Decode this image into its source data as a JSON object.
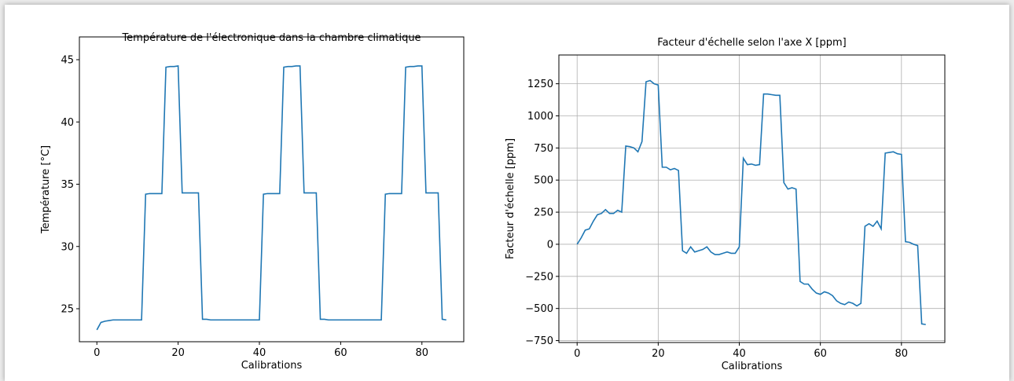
{
  "chart_data": [
    {
      "type": "line",
      "title": "Température de l'électronique dans la chambre climatique",
      "xlabel": "Calibrations",
      "ylabel": "Température [°C]",
      "color": "#1f77b4",
      "grid": false,
      "x": [
        0,
        1,
        2,
        3,
        4,
        5,
        6,
        7,
        8,
        9,
        10,
        11,
        12,
        13,
        14,
        15,
        16,
        17,
        18,
        19,
        20,
        21,
        22,
        23,
        24,
        25,
        26,
        27,
        28,
        29,
        30,
        31,
        32,
        33,
        34,
        35,
        36,
        37,
        38,
        39,
        40,
        41,
        42,
        43,
        44,
        45,
        46,
        47,
        48,
        49,
        50,
        51,
        52,
        53,
        54,
        55,
        56,
        57,
        58,
        59,
        60,
        61,
        62,
        63,
        64,
        65,
        66,
        67,
        68,
        69,
        70,
        71,
        72,
        73,
        74,
        75,
        76,
        77,
        78,
        79,
        80,
        81,
        82,
        83,
        84,
        85,
        86
      ],
      "values": [
        23.3,
        23.9,
        24.0,
        24.05,
        24.1,
        24.1,
        24.1,
        24.1,
        24.1,
        24.1,
        24.1,
        24.1,
        34.2,
        34.25,
        34.25,
        34.25,
        34.25,
        44.4,
        44.45,
        44.45,
        44.5,
        34.3,
        34.3,
        34.3,
        34.3,
        34.3,
        24.15,
        24.15,
        24.1,
        24.1,
        24.1,
        24.1,
        24.1,
        24.1,
        24.1,
        24.1,
        24.1,
        24.1,
        24.1,
        24.1,
        24.1,
        34.2,
        34.25,
        34.25,
        34.25,
        34.25,
        44.4,
        44.45,
        44.45,
        44.5,
        44.5,
        34.3,
        34.3,
        34.3,
        34.3,
        24.15,
        24.15,
        24.1,
        24.1,
        24.1,
        24.1,
        24.1,
        24.1,
        24.1,
        24.1,
        24.1,
        24.1,
        24.1,
        24.1,
        24.1,
        24.1,
        34.2,
        34.25,
        34.25,
        34.25,
        34.25,
        44.4,
        44.45,
        44.45,
        44.5,
        44.5,
        34.3,
        34.3,
        34.3,
        34.3,
        24.15,
        24.1
      ],
      "xlim": [
        -4.3,
        90.3
      ],
      "ylim": [
        22.35,
        46.83
      ],
      "xticks": [
        0,
        20,
        40,
        60,
        80
      ],
      "yticks": [
        25,
        30,
        35,
        40,
        45
      ]
    },
    {
      "type": "line",
      "title": "Facteur d'échelle selon l'axe X [ppm]",
      "xlabel": "Calibrations",
      "ylabel": "Facteur d'échelle [ppm]",
      "color": "#1f77b4",
      "grid": true,
      "x": [
        0,
        1,
        2,
        3,
        4,
        5,
        6,
        7,
        8,
        9,
        10,
        11,
        12,
        13,
        14,
        15,
        16,
        17,
        18,
        19,
        20,
        21,
        22,
        23,
        24,
        25,
        26,
        27,
        28,
        29,
        30,
        31,
        32,
        33,
        34,
        35,
        36,
        37,
        38,
        39,
        40,
        41,
        42,
        43,
        44,
        45,
        46,
        47,
        48,
        49,
        50,
        51,
        52,
        53,
        54,
        55,
        56,
        57,
        58,
        59,
        60,
        61,
        62,
        63,
        64,
        65,
        66,
        67,
        68,
        69,
        70,
        71,
        72,
        73,
        74,
        75,
        76,
        77,
        78,
        79,
        80,
        81,
        82,
        83,
        84,
        85,
        86
      ],
      "values": [
        0,
        50,
        110,
        120,
        180,
        230,
        240,
        270,
        240,
        240,
        265,
        250,
        765,
        760,
        750,
        720,
        800,
        1265,
        1275,
        1250,
        1240,
        600,
        600,
        580,
        590,
        575,
        -50,
        -70,
        -20,
        -60,
        -50,
        -40,
        -20,
        -60,
        -80,
        -80,
        -70,
        -60,
        -70,
        -70,
        -20,
        670,
        620,
        625,
        615,
        620,
        1170,
        1170,
        1165,
        1160,
        1160,
        480,
        430,
        440,
        430,
        -290,
        -310,
        -310,
        -350,
        -380,
        -390,
        -370,
        -380,
        -400,
        -440,
        -460,
        -470,
        -450,
        -460,
        -480,
        -460,
        140,
        160,
        140,
        180,
        120,
        710,
        715,
        720,
        705,
        700,
        20,
        15,
        0,
        -10,
        -620,
        -625
      ],
      "xlim": [
        -4.5,
        90.7
      ],
      "ylim": [
        -765,
        1474
      ],
      "xticks": [
        0,
        20,
        40,
        60,
        80
      ],
      "yticks": [
        {
          "value": -750,
          "label": "−750"
        },
        {
          "value": -500,
          "label": "−500"
        },
        {
          "value": -250,
          "label": "−250"
        },
        0,
        250,
        500,
        750,
        1000,
        1250
      ]
    }
  ]
}
